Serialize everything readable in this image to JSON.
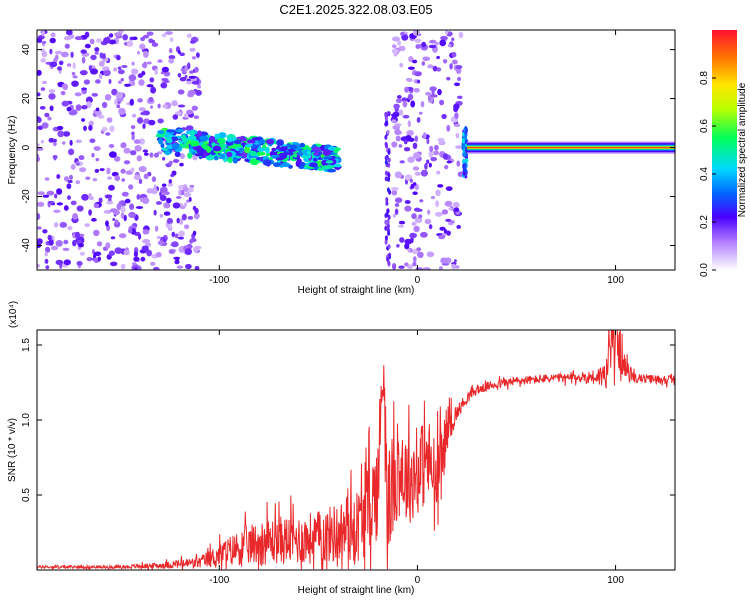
{
  "title": "C2E1.2025.322.08.03.E05",
  "chart_data": [
    {
      "type": "heatmap",
      "xlabel": "Height of straight line (km)",
      "ylabel": "Frequency (Hz)",
      "xlim": [
        -192,
        130
      ],
      "ylim": [
        -50,
        48
      ],
      "xticks": [
        -100,
        0,
        100
      ],
      "xtick_labels": [
        "-100",
        "0",
        "100"
      ],
      "yticks": [
        -40,
        -20,
        0,
        20,
        40
      ],
      "ytick_labels": [
        "-40",
        "-20",
        "0",
        "20",
        "40"
      ],
      "colorbar": {
        "label": "Normalized spectral amplitude",
        "range": [
          0,
          1
        ],
        "ticks": [
          0.0,
          0.2,
          0.4,
          0.6,
          0.8
        ],
        "tick_labels": [
          "0.0",
          "0.2",
          "0.4",
          "0.6",
          "0.8"
        ]
      },
      "features": [
        {
          "kind": "noise",
          "x_range": [
            -192,
            -110
          ],
          "y_range": [
            -50,
            48
          ],
          "amplitude": 0.1
        },
        {
          "kind": "band",
          "x_range": [
            -130,
            -40
          ],
          "center_y": [
            3,
            -5
          ],
          "half_width": 5,
          "amplitude": 0.45
        },
        {
          "kind": "spike",
          "x": -15,
          "y_range": [
            -48,
            14
          ],
          "amplitude": 0.15
        },
        {
          "kind": "noise",
          "x_range": [
            -12,
            22
          ],
          "y_range": [
            -50,
            48
          ],
          "amplitude": 0.1
        },
        {
          "kind": "spike",
          "x": 24,
          "y_range": [
            -12,
            8
          ],
          "amplitude": 0.25
        },
        {
          "kind": "line",
          "x_range": [
            25,
            130
          ],
          "y": 0,
          "amplitude": 0.95
        }
      ],
      "grid": false
    },
    {
      "type": "line",
      "xlabel": "Height of straight line (km)",
      "ylabel": "SNR (10 * v/v)",
      "multiplier": "(x10⁴)",
      "xlim": [
        -192,
        130
      ],
      "ylim": [
        0,
        1.6
      ],
      "xticks": [
        -100,
        0,
        100
      ],
      "xtick_labels": [
        "-100",
        "0",
        "100"
      ],
      "yticks": [
        0.5,
        1.0,
        1.5
      ],
      "ytick_labels": [
        "0.5",
        "1.0",
        "1.5"
      ],
      "color": "#e8282a",
      "series": [
        {
          "x": [
            -192,
            -170,
            -150,
            -130,
            -110,
            -100,
            -90,
            -80,
            -70,
            -60,
            -50,
            -40,
            -30,
            -25,
            -20,
            -17,
            -15,
            -10,
            -5,
            0,
            5,
            10,
            15,
            20,
            25,
            30,
            40,
            50,
            60,
            70,
            80,
            90,
            95,
            100,
            105,
            110,
            120,
            130
          ],
          "y": [
            0.02,
            0.02,
            0.02,
            0.03,
            0.05,
            0.1,
            0.15,
            0.18,
            0.2,
            0.2,
            0.22,
            0.25,
            0.3,
            0.4,
            0.55,
            1.45,
            0.4,
            0.7,
            0.6,
            0.65,
            0.75,
            0.55,
            0.95,
            1.05,
            1.15,
            1.2,
            1.24,
            1.26,
            1.27,
            1.28,
            1.28,
            1.29,
            1.3,
            1.58,
            1.33,
            1.28,
            1.27,
            1.27
          ],
          "noise_amplitude": [
            0.01,
            0.01,
            0.01,
            0.02,
            0.04,
            0.08,
            0.12,
            0.15,
            0.16,
            0.17,
            0.18,
            0.2,
            0.25,
            0.3,
            0.35,
            0.35,
            0.35,
            0.35,
            0.3,
            0.3,
            0.3,
            0.3,
            0.15,
            0.05,
            0.04,
            0.03,
            0.03,
            0.03,
            0.03,
            0.03,
            0.03,
            0.05,
            0.1,
            0.2,
            0.08,
            0.03,
            0.03,
            0.03
          ]
        }
      ],
      "grid": false
    }
  ]
}
